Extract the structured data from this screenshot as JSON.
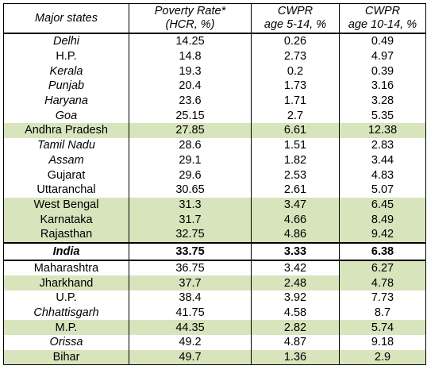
{
  "header": {
    "col1": "Major states",
    "col2_line1": "Poverty Rate*",
    "col2_line2": "(HCR, %)",
    "col3_line1": "CWPR",
    "col3_line2": "age 5-14, %",
    "col4_line1": "CWPR",
    "col4_line2": "age 10-14, %"
  },
  "highlight_color": "#d8e4bc",
  "rows": [
    {
      "state": "Delhi",
      "poverty": "14.25",
      "cwpr_5_14": "0.26",
      "cwpr_10_14": "0.49",
      "italic": true,
      "hl": []
    },
    {
      "state": "H.P.",
      "poverty": "14.8",
      "cwpr_5_14": "2.73",
      "cwpr_10_14": "4.97",
      "italic": false,
      "hl": []
    },
    {
      "state": "Kerala",
      "poverty": "19.3",
      "cwpr_5_14": "0.2",
      "cwpr_10_14": "0.39",
      "italic": true,
      "hl": []
    },
    {
      "state": "Punjab",
      "poverty": "20.4",
      "cwpr_5_14": "1.73",
      "cwpr_10_14": "3.16",
      "italic": true,
      "hl": []
    },
    {
      "state": "Haryana",
      "poverty": "23.6",
      "cwpr_5_14": "1.71",
      "cwpr_10_14": "3.28",
      "italic": true,
      "hl": []
    },
    {
      "state": "Goa",
      "poverty": "25.15",
      "cwpr_5_14": "2.7",
      "cwpr_10_14": "5.35",
      "italic": true,
      "hl": []
    },
    {
      "state": "Andhra Pradesh",
      "poverty": "27.85",
      "cwpr_5_14": "6.61",
      "cwpr_10_14": "12.38",
      "italic": false,
      "hl": [
        0,
        1,
        2,
        3
      ]
    },
    {
      "state": "Tamil Nadu",
      "poverty": "28.6",
      "cwpr_5_14": "1.51",
      "cwpr_10_14": "2.83",
      "italic": true,
      "hl": []
    },
    {
      "state": "Assam",
      "poverty": "29.1",
      "cwpr_5_14": "1.82",
      "cwpr_10_14": "3.44",
      "italic": true,
      "hl": []
    },
    {
      "state": "Gujarat",
      "poverty": "29.6",
      "cwpr_5_14": "2.53",
      "cwpr_10_14": "4.83",
      "italic": false,
      "hl": []
    },
    {
      "state": "Uttaranchal",
      "poverty": "30.65",
      "cwpr_5_14": "2.61",
      "cwpr_10_14": "5.07",
      "italic": false,
      "hl": []
    },
    {
      "state": "West Bengal",
      "poverty": "31.3",
      "cwpr_5_14": "3.47",
      "cwpr_10_14": "6.45",
      "italic": false,
      "hl": [
        0,
        1,
        2,
        3
      ]
    },
    {
      "state": "Karnataka",
      "poverty": "31.7",
      "cwpr_5_14": "4.66",
      "cwpr_10_14": "8.49",
      "italic": false,
      "hl": [
        0,
        1,
        2,
        3
      ]
    },
    {
      "state": "Rajasthan",
      "poverty": "32.75",
      "cwpr_5_14": "4.86",
      "cwpr_10_14": "9.42",
      "italic": false,
      "hl": [
        0,
        1,
        2,
        3
      ]
    }
  ],
  "india": {
    "state": "India",
    "poverty": "33.75",
    "cwpr_5_14": "3.33",
    "cwpr_10_14": "6.38"
  },
  "rows_after": [
    {
      "state": "Maharashtra",
      "poverty": "36.75",
      "cwpr_5_14": "3.42",
      "cwpr_10_14": "6.27",
      "italic": false,
      "hl": [
        3
      ]
    },
    {
      "state": "Jharkhand",
      "poverty": "37.7",
      "cwpr_5_14": "2.48",
      "cwpr_10_14": "4.78",
      "italic": false,
      "hl": [
        0,
        1,
        2,
        3
      ]
    },
    {
      "state": "U.P.",
      "poverty": "38.4",
      "cwpr_5_14": "3.92",
      "cwpr_10_14": "7.73",
      "italic": false,
      "hl": []
    },
    {
      "state": "Chhattisgarh",
      "poverty": "41.75",
      "cwpr_5_14": "4.58",
      "cwpr_10_14": "8.7",
      "italic": true,
      "hl": []
    },
    {
      "state": "M.P.",
      "poverty": "44.35",
      "cwpr_5_14": "2.82",
      "cwpr_10_14": "5.74",
      "italic": false,
      "hl": [
        0,
        1,
        2,
        3
      ]
    },
    {
      "state": "Orissa",
      "poverty": "49.2",
      "cwpr_5_14": "4.87",
      "cwpr_10_14": "9.18",
      "italic": true,
      "hl": []
    },
    {
      "state": "Bihar",
      "poverty": "49.7",
      "cwpr_5_14": "1.36",
      "cwpr_10_14": "2.9",
      "italic": false,
      "hl": [
        0,
        1,
        2,
        3
      ]
    }
  ]
}
